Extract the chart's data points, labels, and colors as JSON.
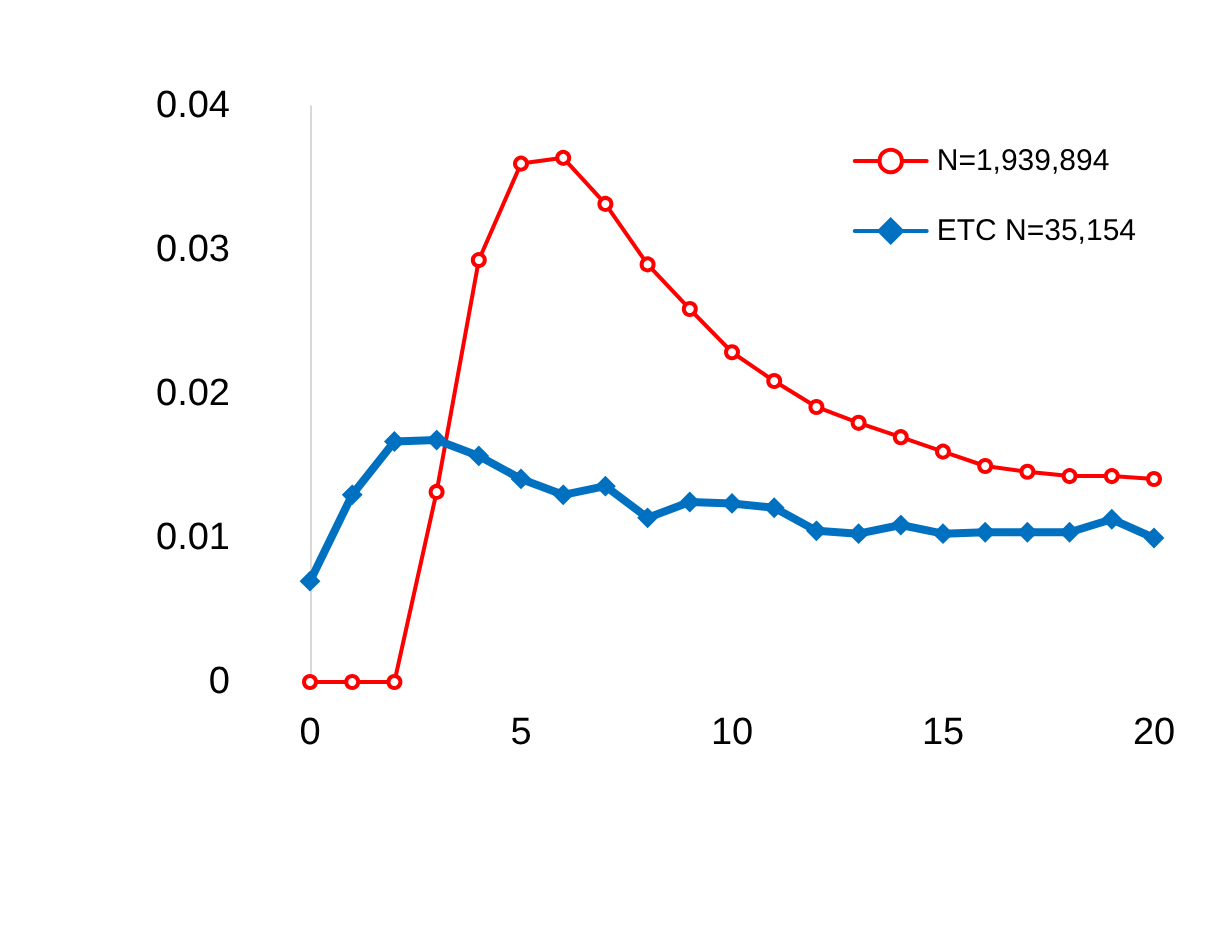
{
  "chart_data": {
    "type": "line",
    "x": [
      0,
      1,
      2,
      3,
      4,
      5,
      6,
      7,
      8,
      9,
      10,
      11,
      12,
      13,
      14,
      15,
      16,
      17,
      18,
      19,
      20
    ],
    "series": [
      {
        "name": "N=1,939,894",
        "color": "#ff0000",
        "marker": "circle",
        "values": [
          0,
          0,
          0,
          0.0132,
          0.0293,
          0.036,
          0.0364,
          0.0332,
          0.029,
          0.0259,
          0.0229,
          0.0209,
          0.0191,
          0.018,
          0.017,
          0.016,
          0.015,
          0.0146,
          0.0143,
          0.0143,
          0.0141
        ]
      },
      {
        "name": "ETC N=35,154",
        "color": "#0070c0",
        "marker": "diamond",
        "values": [
          0.007,
          0.013,
          0.0167,
          0.0168,
          0.0157,
          0.0141,
          0.013,
          0.0136,
          0.0114,
          0.0125,
          0.0124,
          0.0121,
          0.0105,
          0.0103,
          0.0109,
          0.0103,
          0.0104,
          0.0104,
          0.0104,
          0.0113,
          0.01
        ]
      }
    ],
    "xlim": [
      0,
      20
    ],
    "xticks": [
      0,
      5,
      10,
      15,
      20
    ],
    "ylim": [
      0,
      0.04
    ],
    "yticks": [
      0,
      0.01,
      0.02,
      0.03,
      0.04
    ],
    "grid": false,
    "legend": "top right"
  }
}
